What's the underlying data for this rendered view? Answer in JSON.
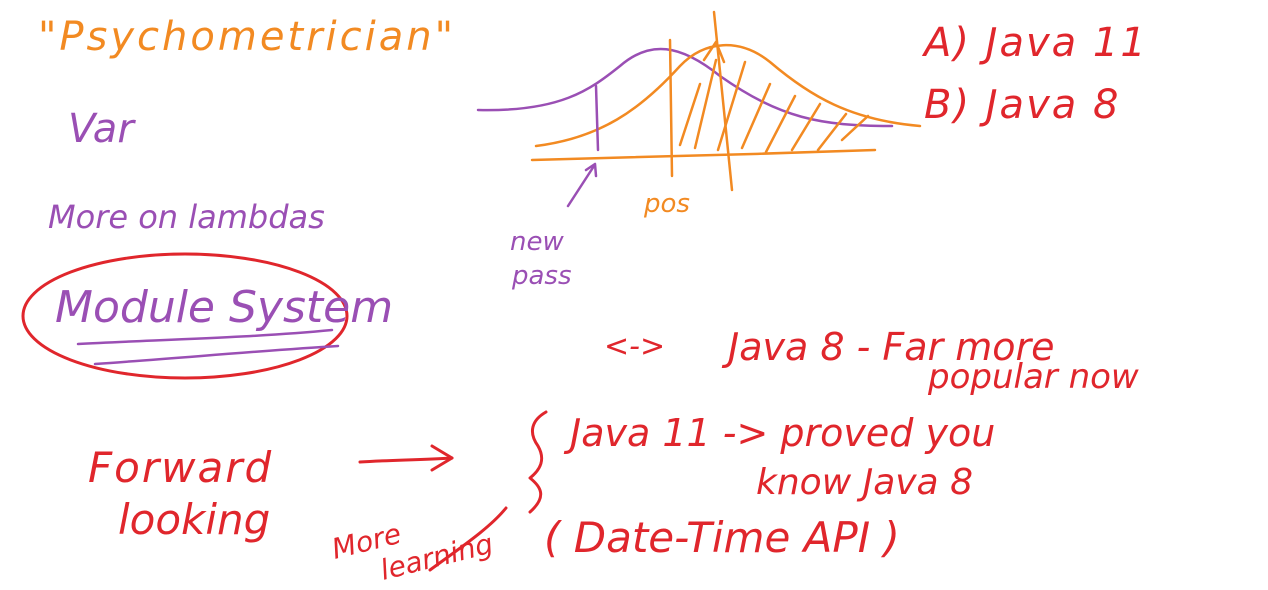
{
  "colors": {
    "orange": "#f28a22",
    "purple": "#9a4fb4",
    "red": "#e0262c"
  },
  "notes": {
    "psychometrician": "\"Psychometrician\"",
    "var": "Var",
    "more_on_lambdas": "More on lambdas",
    "module_system": "Module System",
    "new_pass": [
      "new",
      "pass"
    ],
    "pos": "pos",
    "option_a": "A) Java 11",
    "option_b": "B) Java 8",
    "arrow_left_right": "<->",
    "java8_line1": "Java 8 - Far more",
    "java8_line2": "popular now",
    "forward_looking": [
      "Forward",
      "looking"
    ],
    "more_learning": [
      "More",
      "learning"
    ],
    "java11_line1": "Java 11 -> proved you",
    "java11_line2": "know Java 8",
    "date_time": "( Date-Time API )"
  }
}
